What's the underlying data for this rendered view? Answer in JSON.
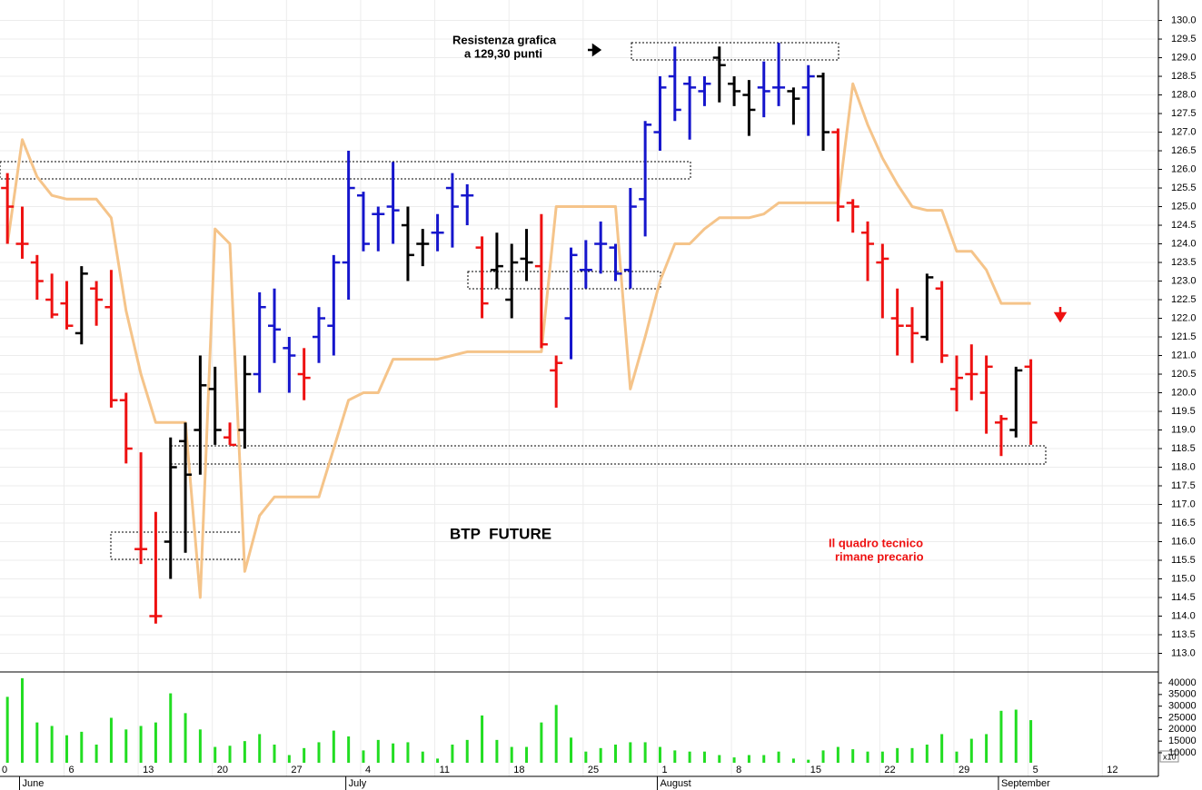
{
  "chart_data": {
    "type": "ohlc",
    "title": "BTP  FUTURE",
    "annotations": [
      [
        "Resistenza grafica",
        "a 129,30 punti"
      ],
      [
        "Il quadro tecnico",
        "rimane precario"
      ]
    ],
    "x": [
      0,
      1,
      2,
      3,
      4,
      5,
      6,
      7,
      8,
      9,
      10,
      11,
      12,
      13,
      14,
      15,
      16,
      17,
      18,
      19,
      20,
      21,
      22,
      23,
      24,
      25,
      26,
      27,
      28,
      29,
      30,
      31,
      32,
      33,
      34,
      35,
      36,
      37,
      38,
      39,
      40,
      41,
      42,
      43,
      44,
      45,
      46,
      47,
      48,
      49,
      50,
      51,
      52,
      53,
      54,
      55,
      56,
      57,
      58,
      59,
      60,
      61,
      62,
      63,
      64,
      65,
      66,
      67,
      68,
      69
    ],
    "xlim": [
      -0.5,
      77.6
    ],
    "xticks": [
      {
        "value": -0.5,
        "label": "0"
      },
      {
        "value": 4,
        "label": "6"
      },
      {
        "value": 9,
        "label": "13"
      },
      {
        "value": 14,
        "label": "20"
      },
      {
        "value": 19,
        "label": "27"
      },
      {
        "value": 24,
        "label": "4"
      },
      {
        "value": 29,
        "label": "11"
      },
      {
        "value": 34,
        "label": "18"
      },
      {
        "value": 39,
        "label": "25"
      },
      {
        "value": 44,
        "label": "1"
      },
      {
        "value": 49,
        "label": "8"
      },
      {
        "value": 54,
        "label": "15"
      },
      {
        "value": 59,
        "label": "22"
      },
      {
        "value": 64,
        "label": "29"
      },
      {
        "value": 69,
        "label": "5"
      },
      {
        "value": 74,
        "label": "12"
      }
    ],
    "month_ticks": [
      {
        "value": 1,
        "label": "June"
      },
      {
        "value": 23,
        "label": "July"
      },
      {
        "value": 44,
        "label": "August"
      },
      {
        "value": 67,
        "label": "September"
      }
    ],
    "open": [
      125.5,
      124.0,
      123.5,
      122.5,
      122.4,
      121.6,
      122.8,
      122.3,
      119.8,
      115.8,
      114.0,
      116.0,
      118.7,
      119.0,
      120.1,
      118.8,
      119.0,
      120.5,
      121.8,
      121.2,
      120.5,
      121.5,
      121.8,
      123.5,
      125.3,
      124.8,
      125.0,
      124.5,
      124.0,
      124.3,
      125.5,
      125.3,
      123.9,
      123.3,
      122.5,
      123.6,
      123.4,
      120.6,
      122.0,
      123.3,
      124.0,
      123.9,
      123.3,
      125.2,
      127.0,
      128.5,
      128.3,
      128.1,
      129.0,
      128.3,
      128.0,
      128.2,
      128.2,
      128.1,
      128.2,
      128.5,
      127.0,
      125.1,
      124.3,
      123.5,
      122.0,
      121.8,
      121.5,
      122.8,
      120.1,
      120.5,
      120.0,
      119.2,
      119.0,
      120.7
    ],
    "high": [
      125.9,
      125.0,
      123.7,
      123.2,
      123.0,
      123.4,
      123.0,
      123.3,
      120.0,
      118.4,
      116.8,
      118.8,
      119.2,
      121.0,
      120.7,
      119.2,
      121.0,
      122.7,
      122.8,
      121.5,
      121.2,
      122.3,
      123.7,
      126.5,
      125.4,
      125.0,
      126.2,
      125.0,
      124.4,
      124.8,
      125.9,
      125.6,
      124.2,
      124.3,
      124.0,
      124.4,
      124.8,
      121.0,
      123.9,
      124.1,
      124.6,
      124.0,
      125.5,
      127.3,
      128.5,
      129.3,
      128.5,
      128.5,
      129.3,
      128.5,
      128.4,
      128.9,
      129.4,
      128.2,
      128.8,
      128.6,
      127.1,
      125.2,
      124.6,
      124.0,
      122.8,
      122.3,
      123.2,
      123.0,
      121.0,
      121.3,
      121.0,
      119.4,
      120.7,
      120.9
    ],
    "low": [
      124.0,
      123.6,
      122.5,
      122.0,
      121.7,
      121.3,
      121.8,
      119.6,
      118.1,
      115.4,
      113.8,
      115.0,
      115.7,
      117.8,
      118.6,
      118.6,
      118.5,
      120.0,
      120.8,
      120.0,
      119.8,
      120.8,
      121.0,
      122.5,
      123.8,
      123.8,
      124.0,
      123.0,
      123.4,
      123.8,
      123.9,
      124.5,
      122.0,
      122.8,
      122.0,
      123.0,
      121.2,
      119.6,
      120.9,
      122.8,
      123.2,
      123.0,
      122.8,
      124.2,
      126.5,
      127.3,
      126.8,
      127.7,
      127.8,
      127.7,
      126.9,
      127.4,
      127.7,
      127.2,
      126.9,
      126.5,
      124.6,
      124.3,
      123.0,
      122.0,
      121.0,
      120.8,
      121.4,
      120.8,
      119.5,
      119.8,
      118.9,
      118.3,
      118.8,
      118.6
    ],
    "close": [
      125.0,
      124.0,
      123.0,
      122.1,
      121.8,
      123.2,
      122.5,
      119.8,
      118.5,
      115.8,
      114.0,
      118.0,
      117.8,
      120.2,
      119.0,
      118.6,
      120.5,
      122.3,
      121.7,
      121.0,
      120.4,
      122.0,
      123.5,
      125.5,
      124.0,
      124.8,
      124.9,
      123.7,
      124.0,
      124.3,
      125.0,
      125.3,
      122.4,
      123.4,
      123.5,
      123.5,
      121.3,
      120.8,
      123.7,
      123.3,
      124.0,
      123.2,
      125.0,
      127.2,
      128.2,
      127.6,
      128.2,
      128.3,
      128.8,
      128.1,
      127.6,
      128.1,
      128.2,
      127.9,
      128.5,
      127.0,
      125.0,
      125.0,
      124.0,
      123.6,
      121.8,
      121.6,
      123.1,
      121.0,
      120.4,
      120.5,
      120.7,
      119.3,
      120.6,
      119.2
    ],
    "colors": [
      "#ee1111",
      "#ee1111",
      "#ee1111",
      "#ee1111",
      "#ee1111",
      "#000000",
      "#ee1111",
      "#ee1111",
      "#ee1111",
      "#ee1111",
      "#ee1111",
      "#000000",
      "#000000",
      "#000000",
      "#000000",
      "#ee1111",
      "#000000",
      "#1515cc",
      "#1515cc",
      "#1515cc",
      "#ee1111",
      "#1515cc",
      "#1515cc",
      "#1515cc",
      "#1515cc",
      "#1515cc",
      "#1515cc",
      "#000000",
      "#000000",
      "#1515cc",
      "#1515cc",
      "#1515cc",
      "#ee1111",
      "#000000",
      "#000000",
      "#000000",
      "#ee1111",
      "#ee1111",
      "#1515cc",
      "#1515cc",
      "#1515cc",
      "#1515cc",
      "#1515cc",
      "#1515cc",
      "#1515cc",
      "#1515cc",
      "#1515cc",
      "#1515cc",
      "#000000",
      "#000000",
      "#000000",
      "#1515cc",
      "#1515cc",
      "#000000",
      "#1515cc",
      "#000000",
      "#ee1111",
      "#ee1111",
      "#ee1111",
      "#ee1111",
      "#ee1111",
      "#ee1111",
      "#000000",
      "#ee1111",
      "#ee1111",
      "#ee1111",
      "#ee1111",
      "#ee1111",
      "#000000",
      "#ee1111"
    ],
    "overlay": {
      "color": "#f5c48a",
      "values": [
        124.0,
        126.8,
        125.8,
        125.3,
        125.2,
        125.2,
        125.2,
        124.7,
        122.2,
        120.5,
        119.2,
        119.2,
        119.2,
        114.5,
        124.4,
        124.0,
        115.2,
        116.7,
        117.2,
        117.2,
        117.2,
        117.2,
        118.5,
        119.8,
        120.0,
        120.0,
        120.9,
        120.9,
        120.9,
        120.9,
        121.0,
        121.1,
        121.1,
        121.1,
        121.1,
        121.1,
        121.1,
        125.0,
        125.0,
        125.0,
        125.0,
        125.0,
        120.1,
        121.5,
        123.0,
        124.0,
        124.0,
        124.4,
        124.7,
        124.7,
        124.7,
        124.8,
        125.1,
        125.1,
        125.1,
        125.1,
        125.1,
        128.3,
        127.2,
        126.3,
        125.6,
        125.0,
        124.9,
        124.9,
        123.8,
        123.8,
        123.3,
        122.4,
        122.4,
        122.4
      ]
    },
    "ylim": [
      112.5,
      130.55
    ],
    "yticks": [
      {
        "value": 113,
        "label": "113.0"
      },
      113.5,
      {
        "value": 114,
        "label": "114.0"
      },
      114.5,
      {
        "value": 115,
        "label": "115.0"
      },
      115.5,
      {
        "value": 116,
        "label": "116.0"
      },
      116.5,
      {
        "value": 117,
        "label": "117.0"
      },
      117.5,
      {
        "value": 118,
        "label": "118.0"
      },
      118.5,
      {
        "value": 119,
        "label": "119.0"
      },
      119.5,
      {
        "value": 120,
        "label": "120.0"
      },
      120.5,
      {
        "value": 121,
        "label": "121.0"
      },
      121.5,
      {
        "value": 122,
        "label": "122.0"
      },
      122.5,
      {
        "value": 123,
        "label": "123.0"
      },
      123.5,
      {
        "value": 124,
        "label": "124.0"
      },
      124.5,
      {
        "value": 125,
        "label": "125.0"
      },
      125.5,
      {
        "value": 126,
        "label": "126.0"
      },
      126.5,
      {
        "value": 127,
        "label": "127.0"
      },
      127.5,
      {
        "value": 128,
        "label": "128.0"
      },
      128.5,
      {
        "value": 129,
        "label": "129.0"
      },
      129.5,
      {
        "value": 130,
        "label": "130.0"
      }
    ],
    "grid": true,
    "volume": {
      "color": "#22dd22",
      "note": "x10",
      "values": [
        34000,
        42000,
        23000,
        21500,
        17500,
        19000,
        13500,
        25000,
        20000,
        21500,
        23000,
        35500,
        27000,
        20000,
        12500,
        13000,
        15000,
        18000,
        13500,
        9000,
        12000,
        14500,
        19500,
        17000,
        11000,
        15500,
        14000,
        14500,
        10500,
        7500,
        13500,
        15500,
        26000,
        15500,
        12500,
        12500,
        23000,
        30500,
        16500,
        10500,
        12000,
        13500,
        14500,
        14500,
        12500,
        11000,
        10500,
        10500,
        9000,
        8000,
        9000,
        9000,
        10500,
        7500,
        7000,
        11000,
        12500,
        11500,
        10500,
        10500,
        12000,
        12000,
        13500,
        18000,
        10500,
        16000,
        18000,
        28000,
        28500,
        24000
      ],
      "ylim": [
        5700,
        43900
      ],
      "yticks": [
        10000,
        15000,
        20000,
        25000,
        30000,
        35000,
        40000
      ]
    }
  }
}
